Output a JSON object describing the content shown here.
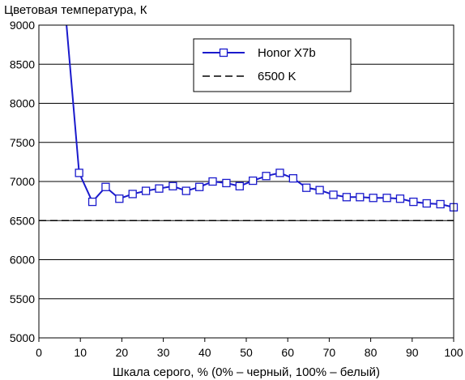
{
  "chart_data": {
    "type": "line",
    "title": "",
    "ylabel": "Цветовая температура, К",
    "xlabel": "Шкала серого, % (0% – черный, 100% – белый)",
    "xlim": [
      0,
      100
    ],
    "ylim": [
      5000,
      9000
    ],
    "xticks": [
      "0",
      "10",
      "20",
      "30",
      "40",
      "50",
      "60",
      "70",
      "80",
      "90",
      "100"
    ],
    "yticks": [
      "5000",
      "5500",
      "6000",
      "6500",
      "7000",
      "7500",
      "8000",
      "8500",
      "9000"
    ],
    "grid": true,
    "legend_position": "top-right",
    "series": [
      {
        "name": "Honor X7b",
        "color": "#1a1acc",
        "marker": "square",
        "points": [
          [
            6.5,
            9100
          ],
          [
            9.7,
            7110
          ],
          [
            12.9,
            6740
          ],
          [
            16.1,
            6930
          ],
          [
            19.4,
            6780
          ],
          [
            22.6,
            6840
          ],
          [
            25.8,
            6880
          ],
          [
            29.0,
            6910
          ],
          [
            32.3,
            6940
          ],
          [
            35.5,
            6880
          ],
          [
            38.7,
            6930
          ],
          [
            41.9,
            7000
          ],
          [
            45.2,
            6980
          ],
          [
            48.4,
            6940
          ],
          [
            51.6,
            7010
          ],
          [
            54.8,
            7070
          ],
          [
            58.1,
            7110
          ],
          [
            61.3,
            7040
          ],
          [
            64.5,
            6920
          ],
          [
            67.7,
            6890
          ],
          [
            71.0,
            6830
          ],
          [
            74.2,
            6800
          ],
          [
            77.4,
            6800
          ],
          [
            80.6,
            6790
          ],
          [
            83.9,
            6790
          ],
          [
            87.1,
            6780
          ],
          [
            90.3,
            6740
          ],
          [
            93.5,
            6720
          ],
          [
            96.8,
            6710
          ],
          [
            100.0,
            6670
          ]
        ],
        "offscale_start": [
          5.8,
          9300
        ]
      },
      {
        "name": "6500 K",
        "color": "#000000",
        "dashed": true,
        "points": [
          [
            0,
            6500
          ],
          [
            100,
            6500
          ]
        ]
      }
    ]
  }
}
